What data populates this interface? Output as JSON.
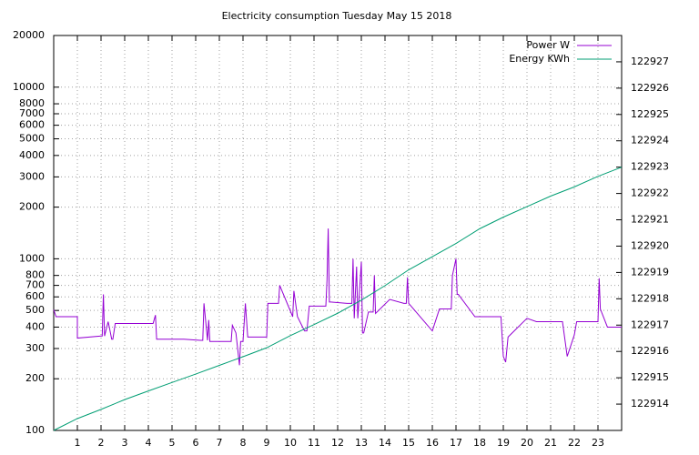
{
  "chart_data": {
    "type": "line",
    "title": "Electricity consumption Tuesday May 15 2018",
    "xlim": [
      0,
      24
    ],
    "xticks": [
      1,
      2,
      3,
      4,
      5,
      6,
      7,
      8,
      9,
      10,
      11,
      12,
      13,
      14,
      15,
      16,
      17,
      18,
      19,
      20,
      21,
      22,
      23
    ],
    "ylim": [
      100,
      20000
    ],
    "log_y": true,
    "yticks": [
      100,
      200,
      300,
      400,
      500,
      600,
      700,
      800,
      1000,
      2000,
      3000,
      4000,
      5000,
      6000,
      7000,
      8000,
      10000,
      20000
    ],
    "y2lim": [
      122913,
      122928
    ],
    "y2ticks": [
      122914,
      122915,
      122916,
      122917,
      122918,
      122919,
      122920,
      122921,
      122922,
      122923,
      122924,
      122925,
      122926,
      122927
    ],
    "grid": true,
    "legend": "top-right",
    "series": [
      {
        "name": "Power W",
        "color": "#9400d3",
        "axis": "y",
        "x": [
          0,
          0.1,
          0.1,
          1,
          1,
          2,
          2.05,
          2.1,
          2.15,
          2.3,
          2.35,
          2.45,
          2.5,
          2.6,
          2.65,
          4.2,
          4.3,
          4.35,
          5.5,
          6.2,
          6.3,
          6.35,
          6.5,
          6.55,
          6.6,
          7.2,
          7.5,
          7.55,
          7.7,
          7.85,
          7.9,
          8.0,
          8.1,
          8.2,
          8.3,
          9.0,
          9.05,
          9.5,
          9.55,
          10.1,
          10.15,
          10.3,
          10.6,
          10.7,
          10.8,
          11.5,
          11.55,
          11.6,
          11.65,
          11.7,
          12.4,
          12.6,
          12.65,
          12.7,
          12.8,
          12.85,
          13.0,
          13.05,
          13.1,
          13.3,
          13.5,
          13.55,
          13.6,
          14.2,
          14.8,
          14.9,
          14.95,
          15.0,
          16.0,
          16.3,
          16.8,
          16.85,
          17.0,
          17.05,
          17.1,
          17.8,
          18.9,
          19.0,
          19.1,
          19.2,
          20.0,
          20.4,
          21.5,
          21.7,
          22.0,
          22.1,
          23.0,
          23.05,
          23.1,
          23.4,
          24
        ],
        "values": [
          505,
          460,
          460,
          460,
          345,
          355,
          355,
          620,
          355,
          430,
          400,
          340,
          340,
          420,
          420,
          420,
          470,
          340,
          340,
          335,
          335,
          550,
          335,
          440,
          330,
          330,
          330,
          410,
          370,
          240,
          330,
          330,
          550,
          350,
          350,
          350,
          550,
          550,
          700,
          460,
          650,
          460,
          380,
          380,
          530,
          530,
          750,
          1500,
          560,
          560,
          550,
          550,
          1000,
          450,
          900,
          450,
          960,
          370,
          370,
          490,
          490,
          800,
          480,
          580,
          550,
          550,
          780,
          550,
          380,
          510,
          510,
          800,
          1000,
          620,
          620,
          460,
          460,
          270,
          250,
          350,
          450,
          430,
          430,
          270,
          360,
          430,
          430,
          770,
          510,
          400,
          400
        ]
      },
      {
        "name": "Energy KWh",
        "color": "#009e73",
        "axis": "y2",
        "x": [
          0,
          1,
          2,
          3,
          4,
          5,
          6,
          7,
          8,
          9,
          10,
          11,
          12,
          13,
          14,
          15,
          16,
          17,
          18,
          19,
          20,
          21,
          22,
          23,
          24
        ],
        "values": [
          122913.0,
          122913.45,
          122913.8,
          122914.17,
          122914.5,
          122914.82,
          122915.14,
          122915.47,
          122915.8,
          122916.14,
          122916.6,
          122917.02,
          122917.45,
          122917.95,
          122918.5,
          122919.1,
          122919.6,
          122920.1,
          122920.66,
          122921.1,
          122921.5,
          122921.9,
          122922.25,
          122922.65,
          122923.0
        ]
      }
    ]
  }
}
